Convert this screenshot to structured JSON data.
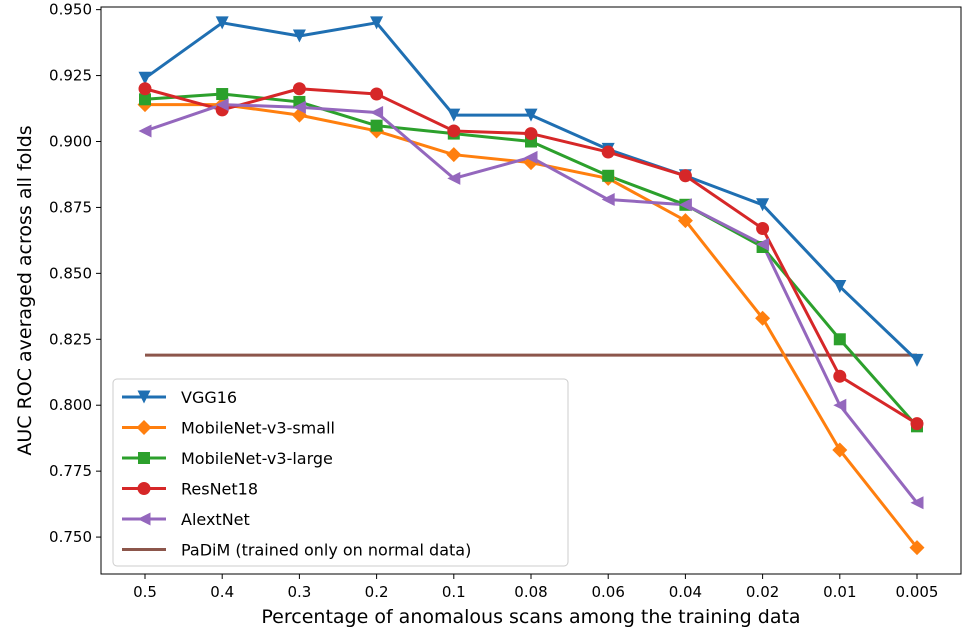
{
  "chart_data": {
    "type": "line",
    "categories": [
      "0.5",
      "0.4",
      "0.3",
      "0.2",
      "0.1",
      "0.08",
      "0.06",
      "0.04",
      "0.02",
      "0.01",
      "0.005"
    ],
    "xlabel": "Percentage of anomalous scans among the training data",
    "ylabel": "AUC ROC averaged across all folds",
    "ylim": [
      0.736,
      0.951
    ],
    "yticks": [
      0.75,
      0.775,
      0.8,
      0.825,
      0.85,
      0.875,
      0.9,
      0.925,
      0.95
    ],
    "ytick_labels": [
      "0.750",
      "0.775",
      "0.800",
      "0.825",
      "0.850",
      "0.875",
      "0.900",
      "0.925",
      "0.950"
    ],
    "grid": false,
    "legend_position": "lower-left",
    "series": [
      {
        "name": "VGG16",
        "color": "#1f6fb2",
        "marker": "triangle-down",
        "values": [
          0.924,
          0.945,
          0.94,
          0.945,
          0.91,
          0.91,
          0.897,
          0.887,
          0.876,
          0.845,
          0.817
        ]
      },
      {
        "name": "MobileNet-v3-small",
        "color": "#ff7f0e",
        "marker": "diamond",
        "values": [
          0.914,
          0.914,
          0.91,
          0.904,
          0.895,
          0.892,
          0.886,
          0.87,
          0.833,
          0.783,
          0.746
        ]
      },
      {
        "name": "MobileNet-v3-large",
        "color": "#2ca02c",
        "marker": "square",
        "values": [
          0.916,
          0.918,
          0.915,
          0.906,
          0.903,
          0.9,
          0.887,
          0.876,
          0.86,
          0.825,
          0.792
        ]
      },
      {
        "name": "ResNet18",
        "color": "#d62728",
        "marker": "circle",
        "values": [
          0.92,
          0.912,
          0.92,
          0.918,
          0.904,
          0.903,
          0.896,
          0.887,
          0.867,
          0.811,
          0.793
        ]
      },
      {
        "name": "AlextNet",
        "color": "#9467bd",
        "marker": "triangle-left",
        "values": [
          0.904,
          0.914,
          0.913,
          0.911,
          0.886,
          0.894,
          0.878,
          0.876,
          0.861,
          0.8,
          0.763
        ]
      },
      {
        "name": "PaDiM (trained only on normal data)",
        "color": "#8c564b",
        "marker": "none",
        "values": [
          0.819,
          0.819,
          0.819,
          0.819,
          0.819,
          0.819,
          0.819,
          0.819,
          0.819,
          0.819,
          0.819
        ]
      }
    ]
  }
}
